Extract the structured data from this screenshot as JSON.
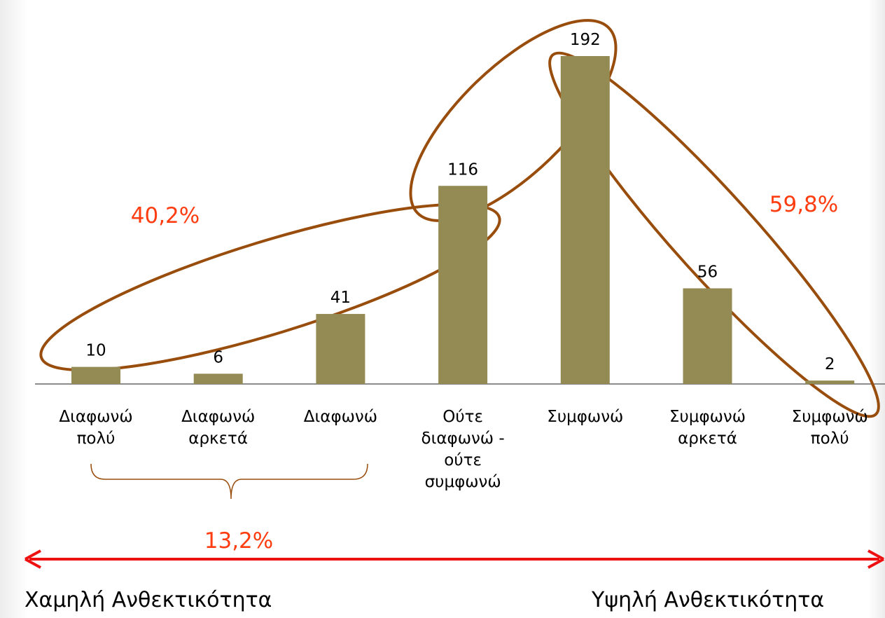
{
  "chart_data": {
    "type": "bar",
    "categories": [
      "Διαφωνώ πολύ",
      "Διαφωνώ αρκετά",
      "Διαφωνώ",
      "Ούτε διαφωνώ - ούτε συμφωνώ",
      "Συμφωνώ",
      "Συμφωνώ αρκετά",
      "Συμφωνώ πολύ"
    ],
    "values": [
      10,
      6,
      41,
      116,
      192,
      56,
      2
    ],
    "color": "#948b54",
    "annotations": [
      "40,2%",
      "59,8%",
      "13,2%"
    ],
    "scale_labels": [
      "Χαμηλή Ανθεκτικότητα",
      "Υψηλή Ανθεκτικότητα"
    ]
  }
}
